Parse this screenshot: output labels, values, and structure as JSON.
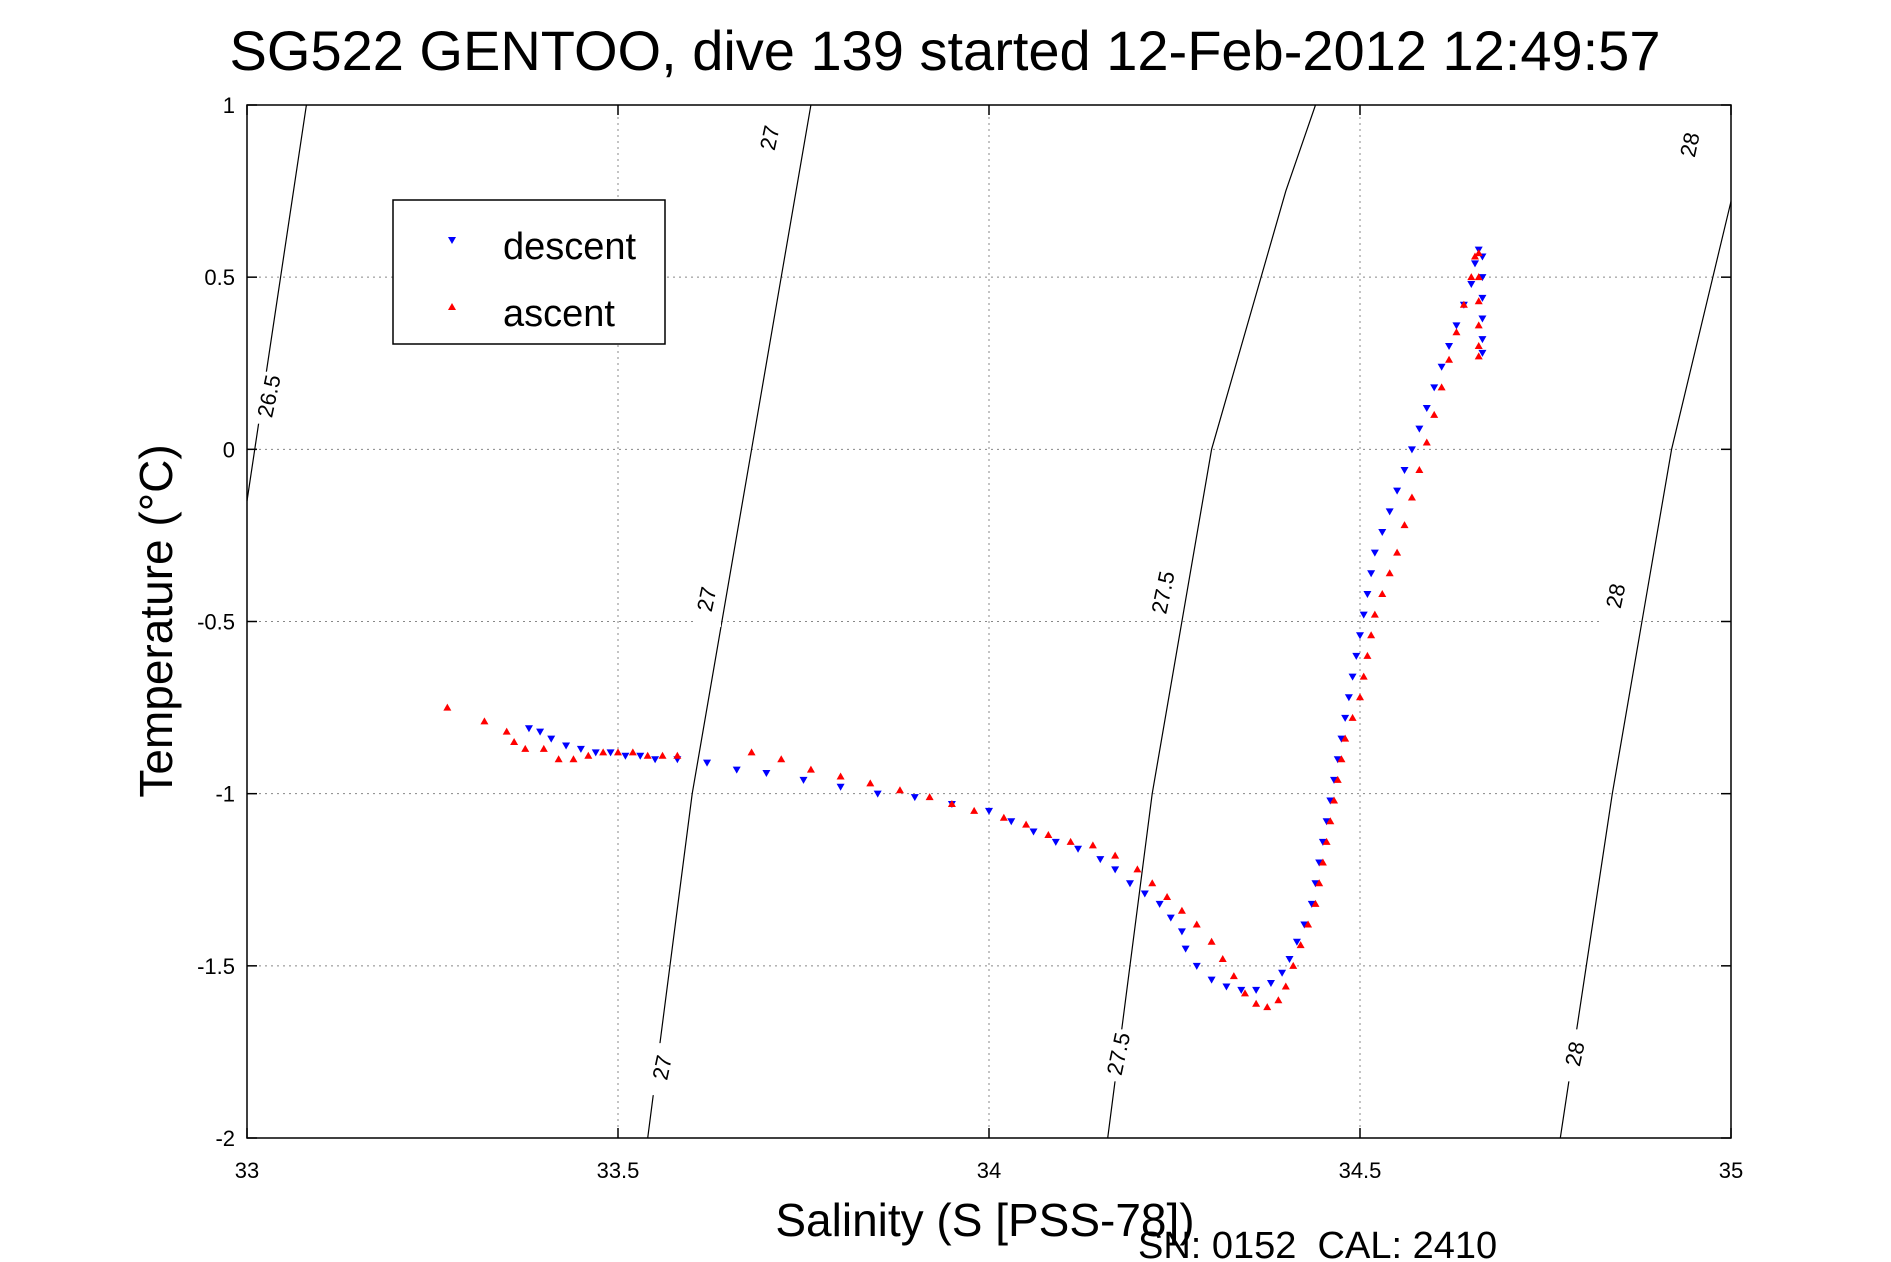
{
  "chart_data": {
    "type": "scatter",
    "title": "SG522 GENTOO, dive 139 started 12-Feb-2012 12:49:57",
    "xlabel": "Salinity (S [PSS-78])",
    "ylabel": "Temperature (°C)",
    "xlim": [
      33,
      35
    ],
    "ylim": [
      -2,
      1
    ],
    "xticks": [
      33,
      33.5,
      34,
      34.5,
      35
    ],
    "xtick_labels": [
      "33",
      "33.5",
      "34",
      "34.5",
      "35"
    ],
    "yticks": [
      1,
      0.5,
      0,
      -0.5,
      -1,
      -1.5,
      -2
    ],
    "ytick_labels": [
      "1",
      "0.5",
      "0",
      "-0.5",
      "-1",
      "-1.5",
      "-2"
    ],
    "grid": true,
    "legend_position": "top-left",
    "footer": "SN: 0152  CAL: 2410",
    "density_contours": [
      {
        "level": "26.5",
        "points": [
          [
            33.0,
            -0.15
          ],
          [
            33.08,
            1.0
          ]
        ],
        "labels": [
          {
            "text": "26.5",
            "x": 33.03,
            "y": 0.15
          }
        ]
      },
      {
        "level": "27",
        "points": [
          [
            33.54,
            -2.0
          ],
          [
            33.6,
            -1.0
          ],
          [
            33.68,
            0.0
          ],
          [
            33.72,
            0.5
          ],
          [
            33.76,
            1.0
          ]
        ],
        "labels": [
          {
            "text": "27",
            "x": 33.56,
            "y": -1.8
          },
          {
            "text": "27",
            "x": 33.62,
            "y": -0.44
          },
          {
            "text": "27",
            "x": 33.705,
            "y": 0.9
          }
        ]
      },
      {
        "level": "27.5",
        "points": [
          [
            34.16,
            -2.0
          ],
          [
            34.22,
            -1.0
          ],
          [
            34.3,
            0.0
          ],
          [
            34.4,
            0.75
          ],
          [
            34.44,
            1.0
          ]
        ],
        "labels": [
          {
            "text": "27.5",
            "x": 34.175,
            "y": -1.76
          },
          {
            "text": "27.5",
            "x": 34.235,
            "y": -0.42
          }
        ]
      },
      {
        "level": "28",
        "points": [
          [
            34.77,
            -2.0
          ],
          [
            34.84,
            -1.0
          ],
          [
            34.92,
            0.0
          ],
          [
            35.0,
            0.72
          ]
        ],
        "labels": [
          {
            "text": "28",
            "x": 34.79,
            "y": -1.76
          },
          {
            "text": "28",
            "x": 34.845,
            "y": -0.43
          },
          {
            "text": "28",
            "x": 34.945,
            "y": 0.88
          }
        ]
      }
    ],
    "series": [
      {
        "name": "descent",
        "color": "#0000ff",
        "marker": "triangle-down",
        "points": [
          [
            33.38,
            -0.81
          ],
          [
            33.395,
            -0.82
          ],
          [
            33.41,
            -0.84
          ],
          [
            33.43,
            -0.86
          ],
          [
            33.45,
            -0.87
          ],
          [
            33.47,
            -0.88
          ],
          [
            33.49,
            -0.88
          ],
          [
            33.51,
            -0.89
          ],
          [
            33.53,
            -0.89
          ],
          [
            33.55,
            -0.9
          ],
          [
            33.58,
            -0.9
          ],
          [
            33.62,
            -0.91
          ],
          [
            33.66,
            -0.93
          ],
          [
            33.7,
            -0.94
          ],
          [
            33.75,
            -0.96
          ],
          [
            33.8,
            -0.98
          ],
          [
            33.85,
            -1.0
          ],
          [
            33.9,
            -1.01
          ],
          [
            33.95,
            -1.03
          ],
          [
            34.0,
            -1.05
          ],
          [
            34.03,
            -1.08
          ],
          [
            34.06,
            -1.11
          ],
          [
            34.09,
            -1.14
          ],
          [
            34.12,
            -1.16
          ],
          [
            34.15,
            -1.19
          ],
          [
            34.17,
            -1.22
          ],
          [
            34.19,
            -1.26
          ],
          [
            34.21,
            -1.29
          ],
          [
            34.23,
            -1.32
          ],
          [
            34.245,
            -1.36
          ],
          [
            34.26,
            -1.4
          ],
          [
            34.265,
            -1.45
          ],
          [
            34.28,
            -1.5
          ],
          [
            34.3,
            -1.54
          ],
          [
            34.32,
            -1.56
          ],
          [
            34.34,
            -1.57
          ],
          [
            34.36,
            -1.57
          ],
          [
            34.38,
            -1.55
          ],
          [
            34.395,
            -1.52
          ],
          [
            34.405,
            -1.48
          ],
          [
            34.415,
            -1.43
          ],
          [
            34.425,
            -1.38
          ],
          [
            34.435,
            -1.32
          ],
          [
            34.44,
            -1.26
          ],
          [
            34.445,
            -1.2
          ],
          [
            34.45,
            -1.14
          ],
          [
            34.455,
            -1.08
          ],
          [
            34.46,
            -1.02
          ],
          [
            34.465,
            -0.96
          ],
          [
            34.47,
            -0.9
          ],
          [
            34.475,
            -0.84
          ],
          [
            34.48,
            -0.78
          ],
          [
            34.485,
            -0.72
          ],
          [
            34.49,
            -0.66
          ],
          [
            34.495,
            -0.6
          ],
          [
            34.5,
            -0.54
          ],
          [
            34.505,
            -0.48
          ],
          [
            34.51,
            -0.42
          ],
          [
            34.515,
            -0.36
          ],
          [
            34.52,
            -0.3
          ],
          [
            34.53,
            -0.24
          ],
          [
            34.54,
            -0.18
          ],
          [
            34.55,
            -0.12
          ],
          [
            34.56,
            -0.06
          ],
          [
            34.57,
            0.0
          ],
          [
            34.58,
            0.06
          ],
          [
            34.59,
            0.12
          ],
          [
            34.6,
            0.18
          ],
          [
            34.61,
            0.24
          ],
          [
            34.62,
            0.3
          ],
          [
            34.63,
            0.36
          ],
          [
            34.64,
            0.42
          ],
          [
            34.65,
            0.48
          ],
          [
            34.655,
            0.54
          ],
          [
            34.66,
            0.58
          ],
          [
            34.665,
            0.56
          ],
          [
            34.665,
            0.5
          ],
          [
            34.665,
            0.44
          ],
          [
            34.665,
            0.38
          ],
          [
            34.665,
            0.32
          ],
          [
            34.665,
            0.28
          ]
        ]
      },
      {
        "name": "ascent",
        "color": "#ff0000",
        "marker": "triangle-up",
        "points": [
          [
            33.27,
            -0.75
          ],
          [
            33.32,
            -0.79
          ],
          [
            33.35,
            -0.82
          ],
          [
            33.36,
            -0.85
          ],
          [
            33.375,
            -0.87
          ],
          [
            33.4,
            -0.87
          ],
          [
            33.42,
            -0.9
          ],
          [
            33.44,
            -0.9
          ],
          [
            33.46,
            -0.89
          ],
          [
            33.48,
            -0.88
          ],
          [
            33.5,
            -0.88
          ],
          [
            33.52,
            -0.88
          ],
          [
            33.54,
            -0.89
          ],
          [
            33.56,
            -0.89
          ],
          [
            33.58,
            -0.89
          ],
          [
            33.68,
            -0.88
          ],
          [
            33.72,
            -0.9
          ],
          [
            33.76,
            -0.93
          ],
          [
            33.8,
            -0.95
          ],
          [
            33.84,
            -0.97
          ],
          [
            33.88,
            -0.99
          ],
          [
            33.92,
            -1.01
          ],
          [
            33.95,
            -1.03
          ],
          [
            33.98,
            -1.05
          ],
          [
            34.02,
            -1.07
          ],
          [
            34.05,
            -1.09
          ],
          [
            34.08,
            -1.12
          ],
          [
            34.11,
            -1.14
          ],
          [
            34.14,
            -1.15
          ],
          [
            34.17,
            -1.18
          ],
          [
            34.2,
            -1.22
          ],
          [
            34.22,
            -1.26
          ],
          [
            34.24,
            -1.3
          ],
          [
            34.26,
            -1.34
          ],
          [
            34.28,
            -1.38
          ],
          [
            34.3,
            -1.43
          ],
          [
            34.315,
            -1.48
          ],
          [
            34.33,
            -1.53
          ],
          [
            34.345,
            -1.58
          ],
          [
            34.36,
            -1.61
          ],
          [
            34.375,
            -1.62
          ],
          [
            34.39,
            -1.6
          ],
          [
            34.4,
            -1.56
          ],
          [
            34.41,
            -1.5
          ],
          [
            34.42,
            -1.44
          ],
          [
            34.43,
            -1.38
          ],
          [
            34.44,
            -1.32
          ],
          [
            34.445,
            -1.26
          ],
          [
            34.45,
            -1.2
          ],
          [
            34.455,
            -1.14
          ],
          [
            34.46,
            -1.08
          ],
          [
            34.465,
            -1.02
          ],
          [
            34.47,
            -0.96
          ],
          [
            34.475,
            -0.9
          ],
          [
            34.48,
            -0.84
          ],
          [
            34.49,
            -0.78
          ],
          [
            34.5,
            -0.72
          ],
          [
            34.505,
            -0.66
          ],
          [
            34.51,
            -0.6
          ],
          [
            34.515,
            -0.54
          ],
          [
            34.52,
            -0.48
          ],
          [
            34.53,
            -0.42
          ],
          [
            34.54,
            -0.36
          ],
          [
            34.55,
            -0.3
          ],
          [
            34.56,
            -0.22
          ],
          [
            34.57,
            -0.14
          ],
          [
            34.58,
            -0.06
          ],
          [
            34.59,
            0.02
          ],
          [
            34.6,
            0.1
          ],
          [
            34.61,
            0.18
          ],
          [
            34.62,
            0.26
          ],
          [
            34.63,
            0.34
          ],
          [
            34.64,
            0.42
          ],
          [
            34.65,
            0.5
          ],
          [
            34.655,
            0.56
          ],
          [
            34.66,
            0.57
          ],
          [
            34.66,
            0.5
          ],
          [
            34.66,
            0.43
          ],
          [
            34.66,
            0.36
          ],
          [
            34.66,
            0.3
          ],
          [
            34.66,
            0.27
          ]
        ]
      }
    ]
  }
}
